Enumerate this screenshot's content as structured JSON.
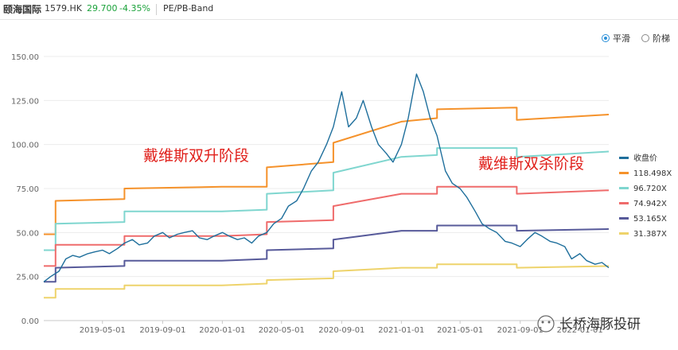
{
  "header": {
    "stock_name": "颐海国际",
    "code": "1579.HK",
    "price": "29.700",
    "change": "-4.35%",
    "band_label": "PE/PB-Band"
  },
  "toggles": {
    "smooth": "平滑",
    "step": "阶梯"
  },
  "annotations": {
    "left": "戴维斯双升阶段",
    "right": "戴维斯双杀阶段"
  },
  "watermark": "长桥海豚投研",
  "colors": {
    "price": "#1f6f9c",
    "band1": "#f5922b",
    "band2": "#7fd6cf",
    "band3": "#ef6b6b",
    "band4": "#575a9a",
    "band5": "#eed36b",
    "annotation": "#e0201b"
  },
  "chart_data": {
    "type": "line",
    "xlabel": "",
    "ylabel": "",
    "ylim": [
      0,
      150
    ],
    "y_ticks": [
      "0.00",
      "25.00",
      "50.00",
      "75.00",
      "100.00",
      "125.00",
      "150.00"
    ],
    "x_ticks": [
      "2019-05-01",
      "2019-09-01",
      "2020-01-01",
      "2020-05-01",
      "2020-09-01",
      "2021-01-01",
      "2021-05-01",
      "2021-09-01",
      "2022-01-01"
    ],
    "x_range": [
      "2019-01-01",
      "2022-03-01"
    ],
    "legend_position": "right",
    "series": [
      {
        "name": "收盘价",
        "color": "#1f6f9c",
        "points": [
          [
            "2019-01-01",
            22
          ],
          [
            "2019-01-15",
            25
          ],
          [
            "2019-02-01",
            28
          ],
          [
            "2019-02-15",
            35
          ],
          [
            "2019-03-01",
            37
          ],
          [
            "2019-03-15",
            36
          ],
          [
            "2019-04-01",
            38
          ],
          [
            "2019-04-15",
            39
          ],
          [
            "2019-05-01",
            40
          ],
          [
            "2019-05-15",
            38
          ],
          [
            "2019-06-01",
            41
          ],
          [
            "2019-06-15",
            44
          ],
          [
            "2019-07-01",
            46
          ],
          [
            "2019-07-15",
            43
          ],
          [
            "2019-08-01",
            44
          ],
          [
            "2019-08-15",
            48
          ],
          [
            "2019-09-01",
            50
          ],
          [
            "2019-09-15",
            47
          ],
          [
            "2019-10-01",
            49
          ],
          [
            "2019-10-15",
            50
          ],
          [
            "2019-11-01",
            51
          ],
          [
            "2019-11-15",
            47
          ],
          [
            "2019-12-01",
            46
          ],
          [
            "2019-12-15",
            48
          ],
          [
            "2020-01-01",
            50
          ],
          [
            "2020-01-15",
            48
          ],
          [
            "2020-02-01",
            46
          ],
          [
            "2020-02-15",
            47
          ],
          [
            "2020-03-01",
            44
          ],
          [
            "2020-03-15",
            48
          ],
          [
            "2020-04-01",
            50
          ],
          [
            "2020-04-15",
            55
          ],
          [
            "2020-05-01",
            58
          ],
          [
            "2020-05-15",
            65
          ],
          [
            "2020-06-01",
            68
          ],
          [
            "2020-06-15",
            75
          ],
          [
            "2020-07-01",
            85
          ],
          [
            "2020-07-15",
            90
          ],
          [
            "2020-08-01",
            100
          ],
          [
            "2020-08-15",
            110
          ],
          [
            "2020-09-01",
            130
          ],
          [
            "2020-09-15",
            110
          ],
          [
            "2020-10-01",
            115
          ],
          [
            "2020-10-15",
            125
          ],
          [
            "2020-11-01",
            110
          ],
          [
            "2020-11-15",
            100
          ],
          [
            "2020-12-01",
            95
          ],
          [
            "2020-12-15",
            90
          ],
          [
            "2021-01-01",
            100
          ],
          [
            "2021-01-15",
            115
          ],
          [
            "2021-02-01",
            140
          ],
          [
            "2021-02-15",
            130
          ],
          [
            "2021-03-01",
            115
          ],
          [
            "2021-03-15",
            105
          ],
          [
            "2021-04-01",
            85
          ],
          [
            "2021-04-15",
            78
          ],
          [
            "2021-05-01",
            75
          ],
          [
            "2021-05-15",
            70
          ],
          [
            "2021-06-01",
            62
          ],
          [
            "2021-06-15",
            55
          ],
          [
            "2021-07-01",
            52
          ],
          [
            "2021-07-15",
            50
          ],
          [
            "2021-08-01",
            45
          ],
          [
            "2021-08-15",
            44
          ],
          [
            "2021-09-01",
            42
          ],
          [
            "2021-09-15",
            46
          ],
          [
            "2021-10-01",
            50
          ],
          [
            "2021-10-15",
            48
          ],
          [
            "2021-11-01",
            45
          ],
          [
            "2021-11-15",
            44
          ],
          [
            "2021-12-01",
            42
          ],
          [
            "2021-12-15",
            35
          ],
          [
            "2022-01-01",
            38
          ],
          [
            "2022-01-15",
            34
          ],
          [
            "2022-02-01",
            32
          ],
          [
            "2022-02-15",
            33
          ],
          [
            "2022-03-01",
            30
          ]
        ]
      },
      {
        "name": "118.498X",
        "color": "#f5922b",
        "points": [
          [
            "2019-01-01",
            49
          ],
          [
            "2019-01-25",
            49
          ],
          [
            "2019-01-25",
            68
          ],
          [
            "2019-06-15",
            69
          ],
          [
            "2019-06-15",
            75
          ],
          [
            "2019-12-31",
            76
          ],
          [
            "2020-04-01",
            76
          ],
          [
            "2020-04-01",
            87
          ],
          [
            "2020-08-15",
            90
          ],
          [
            "2020-08-15",
            101
          ],
          [
            "2021-01-01",
            113
          ],
          [
            "2021-03-15",
            115
          ],
          [
            "2021-03-15",
            120
          ],
          [
            "2021-08-25",
            121
          ],
          [
            "2021-08-25",
            114
          ],
          [
            "2022-03-01",
            117
          ]
        ]
      },
      {
        "name": "96.720X",
        "color": "#7fd6cf",
        "points": [
          [
            "2019-01-01",
            40
          ],
          [
            "2019-01-25",
            40
          ],
          [
            "2019-01-25",
            55
          ],
          [
            "2019-06-15",
            56
          ],
          [
            "2019-06-15",
            62
          ],
          [
            "2019-12-31",
            62
          ],
          [
            "2020-04-01",
            63
          ],
          [
            "2020-04-01",
            72
          ],
          [
            "2020-08-15",
            74
          ],
          [
            "2020-08-15",
            84
          ],
          [
            "2021-01-01",
            93
          ],
          [
            "2021-03-15",
            94
          ],
          [
            "2021-03-15",
            98
          ],
          [
            "2021-08-25",
            98
          ],
          [
            "2021-08-25",
            93
          ],
          [
            "2022-03-01",
            96
          ]
        ]
      },
      {
        "name": "74.942X",
        "color": "#ef6b6b",
        "points": [
          [
            "2019-01-01",
            31
          ],
          [
            "2019-01-25",
            31
          ],
          [
            "2019-01-25",
            43
          ],
          [
            "2019-06-15",
            43
          ],
          [
            "2019-06-15",
            48
          ],
          [
            "2019-12-31",
            48
          ],
          [
            "2020-04-01",
            49
          ],
          [
            "2020-04-01",
            56
          ],
          [
            "2020-08-15",
            57
          ],
          [
            "2020-08-15",
            65
          ],
          [
            "2021-01-01",
            72
          ],
          [
            "2021-03-15",
            72
          ],
          [
            "2021-03-15",
            76
          ],
          [
            "2021-08-25",
            76
          ],
          [
            "2021-08-25",
            72
          ],
          [
            "2022-03-01",
            74
          ]
        ]
      },
      {
        "name": "53.165X",
        "color": "#575a9a",
        "points": [
          [
            "2019-01-01",
            22
          ],
          [
            "2019-01-25",
            22
          ],
          [
            "2019-01-25",
            30
          ],
          [
            "2019-06-15",
            31
          ],
          [
            "2019-06-15",
            34
          ],
          [
            "2019-12-31",
            34
          ],
          [
            "2020-04-01",
            35
          ],
          [
            "2020-04-01",
            40
          ],
          [
            "2020-08-15",
            41
          ],
          [
            "2020-08-15",
            46
          ],
          [
            "2021-01-01",
            51
          ],
          [
            "2021-03-15",
            51
          ],
          [
            "2021-03-15",
            54
          ],
          [
            "2021-08-25",
            54
          ],
          [
            "2021-08-25",
            51
          ],
          [
            "2022-03-01",
            52
          ]
        ]
      },
      {
        "name": "31.387X",
        "color": "#eed36b",
        "points": [
          [
            "2019-01-01",
            13
          ],
          [
            "2019-01-25",
            13
          ],
          [
            "2019-01-25",
            18
          ],
          [
            "2019-06-15",
            18
          ],
          [
            "2019-06-15",
            20
          ],
          [
            "2019-12-31",
            20
          ],
          [
            "2020-04-01",
            21
          ],
          [
            "2020-04-01",
            23
          ],
          [
            "2020-08-15",
            24
          ],
          [
            "2020-08-15",
            28
          ],
          [
            "2021-01-01",
            30
          ],
          [
            "2021-03-15",
            30
          ],
          [
            "2021-03-15",
            32
          ],
          [
            "2021-08-25",
            32
          ],
          [
            "2021-08-25",
            30
          ],
          [
            "2022-03-01",
            31
          ]
        ]
      }
    ]
  }
}
